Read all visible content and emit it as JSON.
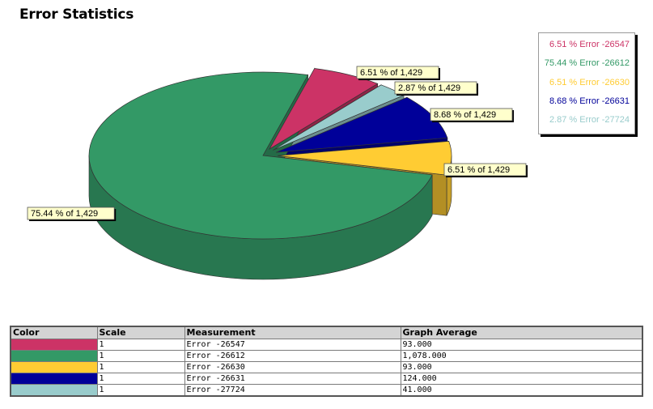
{
  "title": "Error Statistics",
  "chart_data": {
    "type": "pie",
    "total": "1,429",
    "slices": [
      {
        "name": "Error -26547",
        "value": 93,
        "percent": "6.51 %",
        "label": "6.51 % of 1,429",
        "color": "#cc3366"
      },
      {
        "name": "Error -27724",
        "value": 41,
        "percent": "2.87 %",
        "label": "2.87 % of 1,429",
        "color": "#99cccc"
      },
      {
        "name": "Error -26631",
        "value": 124,
        "percent": "8.68 %",
        "label": "8.68 % of 1,429",
        "color": "#000099"
      },
      {
        "name": "Error -26630",
        "value": 93,
        "percent": "6.51 %",
        "label": "6.51 % of 1,429",
        "color": "#ffcc33"
      },
      {
        "name": "Error -26612",
        "value": 1078,
        "percent": "75.44 %",
        "label": "75.44 % of 1,429",
        "color": "#339966"
      }
    ],
    "legend_position": "top-right",
    "legend": [
      {
        "text": "6.51 % Error -26547",
        "color": "#cc3366"
      },
      {
        "text": "75.44 % Error -26612",
        "color": "#339966"
      },
      {
        "text": "6.51 % Error -26630",
        "color": "#ffcc33"
      },
      {
        "text": "8.68 % Error -26631",
        "color": "#000099"
      },
      {
        "text": "2.87 % Error -27724",
        "color": "#99cccc"
      }
    ]
  },
  "table": {
    "headers": [
      "Color",
      "Scale",
      "Measurement",
      "Graph Average"
    ],
    "rows": [
      {
        "color": "#cc3366",
        "scale": "1",
        "measurement": "Error -26547",
        "average": "93.000"
      },
      {
        "color": "#339966",
        "scale": "1",
        "measurement": "Error -26612",
        "average": "1,078.000"
      },
      {
        "color": "#ffcc33",
        "scale": "1",
        "measurement": "Error -26630",
        "average": "93.000"
      },
      {
        "color": "#000099",
        "scale": "1",
        "measurement": "Error -26631",
        "average": "124.000"
      },
      {
        "color": "#99cccc",
        "scale": "1",
        "measurement": "Error -27724",
        "average": "41.000"
      }
    ]
  }
}
